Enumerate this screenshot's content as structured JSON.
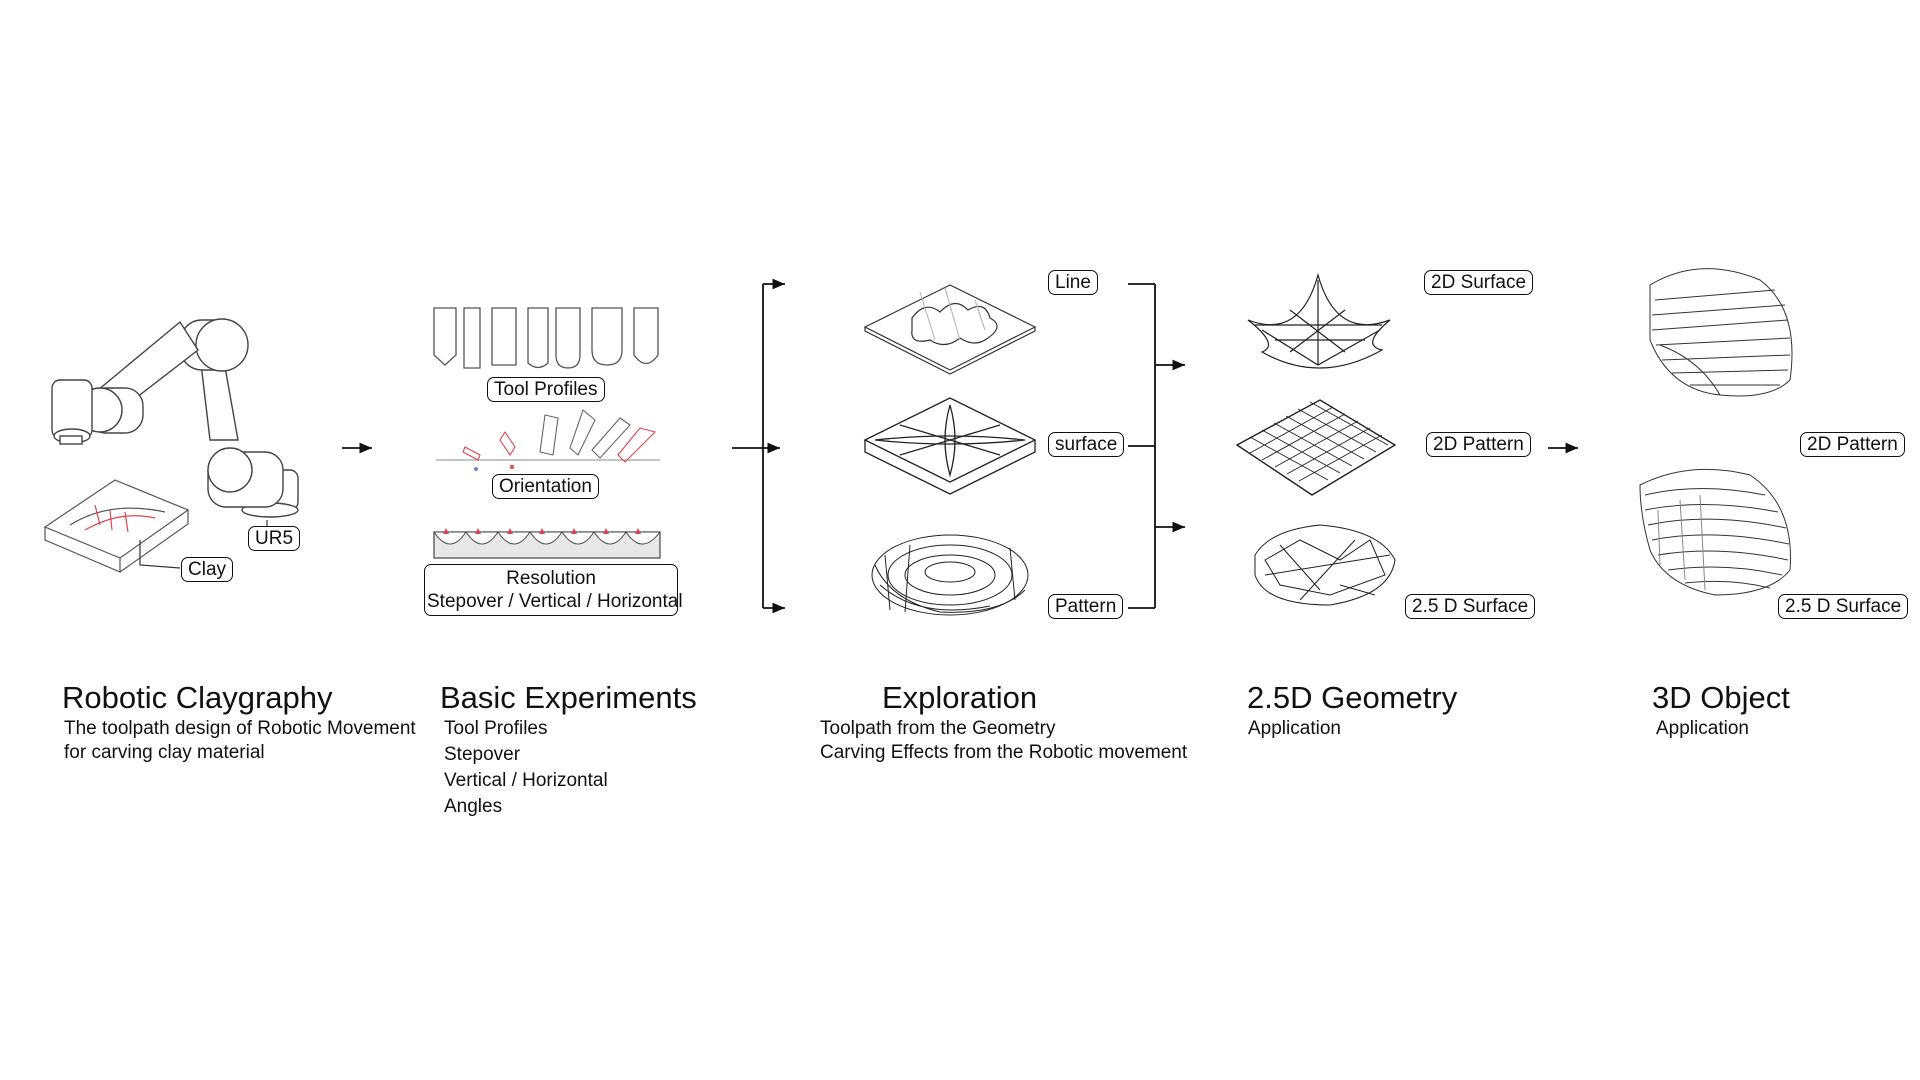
{
  "sections": [
    {
      "title": "Robotic Claygraphy",
      "lines": [
        "The toolpath design of Robotic Movement",
        "for carving clay material"
      ]
    },
    {
      "title": "Basic Experiments",
      "lines": [
        "Tool Profiles",
        "Stepover",
        "Vertical / Horizontal",
        "Angles"
      ]
    },
    {
      "title": "Exploration",
      "lines": [
        "Toolpath from the Geometry",
        "Carving Effects from the Robotic movement"
      ]
    },
    {
      "title": "2.5D Geometry",
      "lines": [
        "Application"
      ]
    },
    {
      "title": "3D Object",
      "lines": [
        "Application"
      ]
    }
  ],
  "labels": {
    "ur5": "UR5",
    "clay": "Clay",
    "tool_profiles": "Tool Profiles",
    "orientation": "Orientation",
    "resolution": "Resolution",
    "resolution_detail": "Stepover / Vertical / Horizontal",
    "line": "Line",
    "surface": "surface",
    "pattern": "Pattern",
    "geo_2d_surface": "2D Surface",
    "geo_2d_pattern": "2D Pattern",
    "geo_25d_surface": "2.5 D Surface",
    "obj_2d_pattern": "2D Pattern",
    "obj_25d_surface": "2.5 D Surface"
  },
  "colors": {
    "ink": "#111111",
    "accent": "#d8454f",
    "accent_light": "#f2b8bc"
  }
}
